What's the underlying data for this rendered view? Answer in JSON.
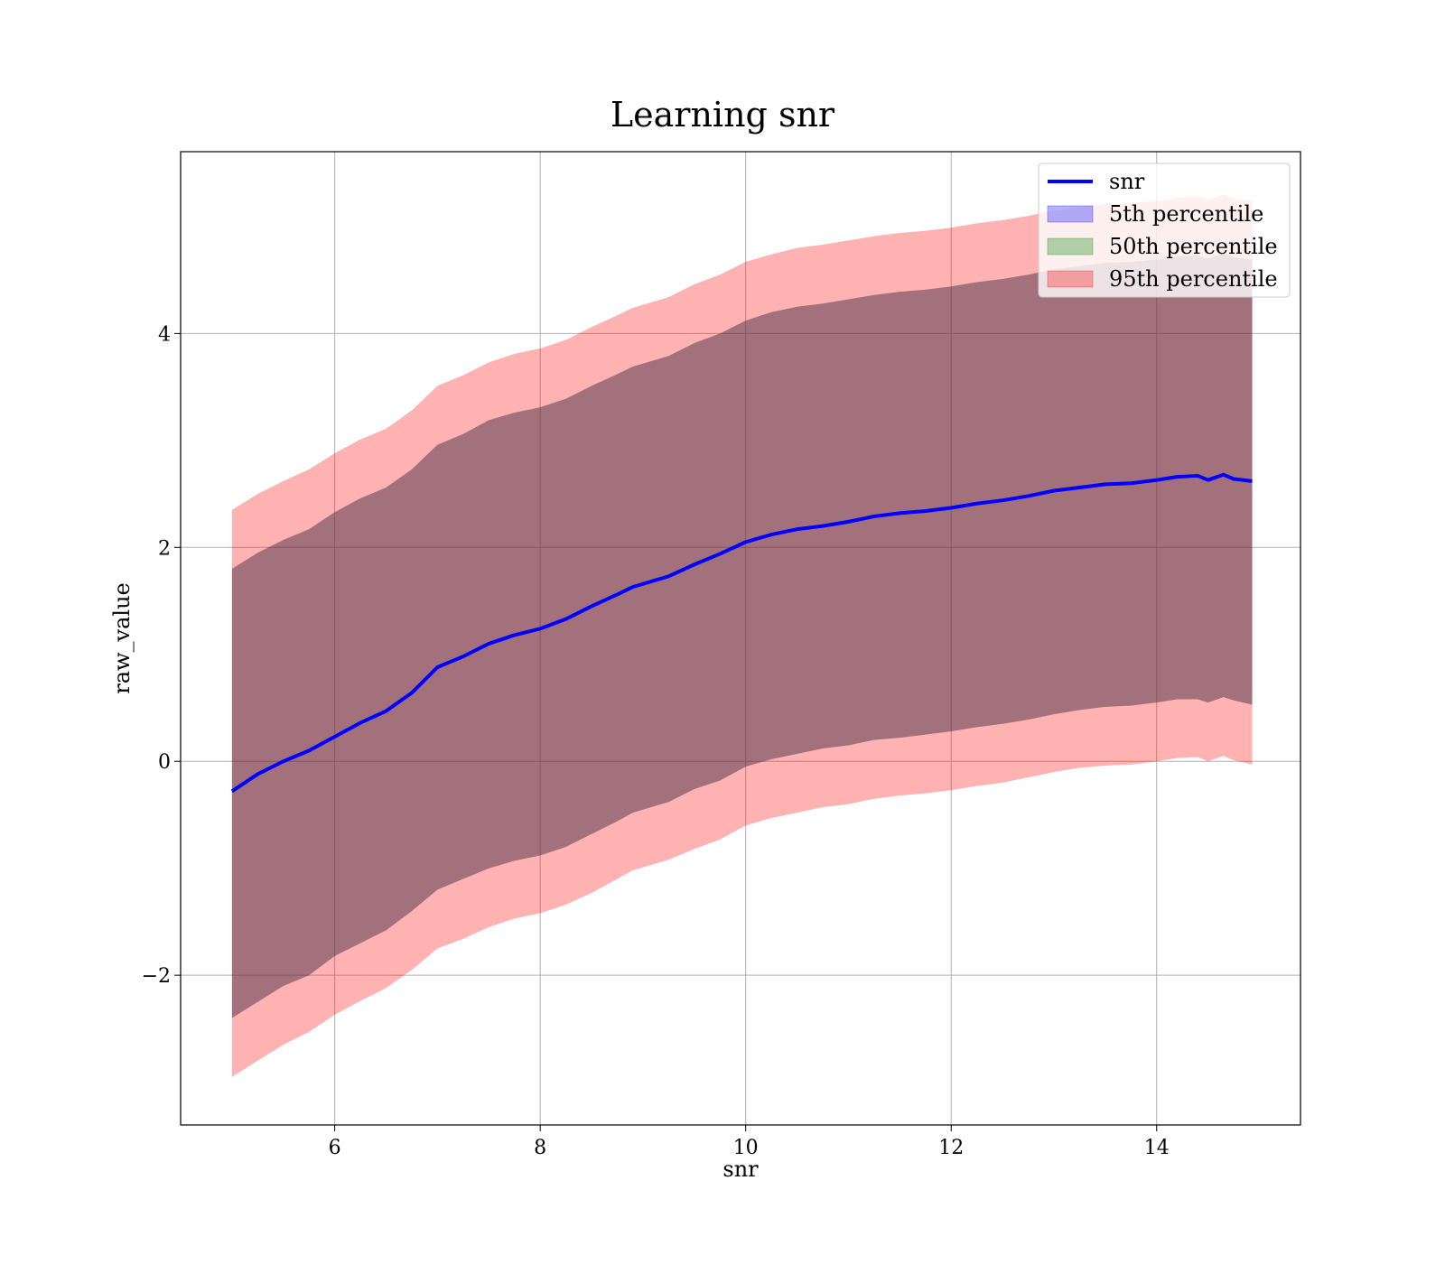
{
  "chart_data": {
    "type": "line",
    "title": "Learning snr",
    "xlabel": "snr",
    "ylabel": "raw_value",
    "xlim": [
      4.5,
      15.4
    ],
    "ylim": [
      -3.4,
      5.7
    ],
    "xticks": [
      6,
      8,
      10,
      12,
      14
    ],
    "xtick_labels": [
      "6",
      "8",
      "10",
      "12",
      "14"
    ],
    "yticks": [
      -2,
      0,
      2,
      4
    ],
    "ytick_labels": [
      "−2",
      "0",
      "2",
      "4"
    ],
    "grid": true,
    "legend_position": "top-right",
    "x": [
      5.0,
      5.25,
      5.5,
      5.75,
      6.0,
      6.25,
      6.5,
      6.75,
      7.0,
      7.25,
      7.5,
      7.75,
      8.0,
      8.25,
      8.5,
      8.75,
      8.9,
      9.25,
      9.5,
      9.75,
      10.0,
      10.25,
      10.5,
      10.75,
      11.0,
      11.25,
      11.5,
      11.75,
      12.0,
      12.25,
      12.5,
      12.75,
      13.0,
      13.25,
      13.5,
      13.75,
      14.0,
      14.2,
      14.4,
      14.5,
      14.65,
      14.75,
      14.93
    ],
    "series": [
      {
        "name": "snr",
        "kind": "line",
        "color": "#0000ff",
        "values": [
          -0.28,
          -0.12,
          0.0,
          0.1,
          0.23,
          0.36,
          0.47,
          0.64,
          0.88,
          0.98,
          1.1,
          1.18,
          1.24,
          1.33,
          1.45,
          1.56,
          1.63,
          1.73,
          1.84,
          1.94,
          2.05,
          2.12,
          2.17,
          2.2,
          2.24,
          2.29,
          2.32,
          2.34,
          2.37,
          2.41,
          2.44,
          2.48,
          2.53,
          2.56,
          2.59,
          2.6,
          2.63,
          2.66,
          2.67,
          2.63,
          2.68,
          2.64,
          2.62
        ]
      },
      {
        "name": "5th percentile",
        "kind": "band",
        "color": "#0000ff",
        "lower": [
          -2.4,
          -2.25,
          -2.1,
          -2.0,
          -1.82,
          -1.7,
          -1.58,
          -1.4,
          -1.2,
          -1.1,
          -1.0,
          -0.93,
          -0.88,
          -0.8,
          -0.68,
          -0.56,
          -0.48,
          -0.38,
          -0.26,
          -0.18,
          -0.05,
          0.02,
          0.07,
          0.12,
          0.15,
          0.2,
          0.22,
          0.25,
          0.28,
          0.32,
          0.35,
          0.39,
          0.44,
          0.48,
          0.51,
          0.52,
          0.55,
          0.58,
          0.58,
          0.55,
          0.6,
          0.57,
          0.53
        ],
        "upper": [
          1.8,
          1.95,
          2.07,
          2.17,
          2.33,
          2.46,
          2.56,
          2.73,
          2.96,
          3.06,
          3.19,
          3.26,
          3.31,
          3.39,
          3.51,
          3.62,
          3.69,
          3.79,
          3.91,
          4.0,
          4.12,
          4.2,
          4.25,
          4.28,
          4.32,
          4.36,
          4.39,
          4.41,
          4.44,
          4.48,
          4.51,
          4.55,
          4.6,
          4.63,
          4.66,
          4.67,
          4.69,
          4.72,
          4.73,
          4.7,
          4.75,
          4.71,
          4.69
        ]
      },
      {
        "name": "50th percentile",
        "kind": "band",
        "color": "#008000",
        "lower": [
          -2.4,
          -2.25,
          -2.1,
          -2.0,
          -1.82,
          -1.7,
          -1.58,
          -1.4,
          -1.2,
          -1.1,
          -1.0,
          -0.93,
          -0.88,
          -0.8,
          -0.68,
          -0.56,
          -0.48,
          -0.38,
          -0.26,
          -0.18,
          -0.05,
          0.02,
          0.07,
          0.12,
          0.15,
          0.2,
          0.22,
          0.25,
          0.28,
          0.32,
          0.35,
          0.39,
          0.44,
          0.48,
          0.51,
          0.52,
          0.55,
          0.58,
          0.58,
          0.55,
          0.6,
          0.57,
          0.53
        ],
        "upper": [
          1.8,
          1.95,
          2.07,
          2.17,
          2.33,
          2.46,
          2.56,
          2.73,
          2.96,
          3.06,
          3.19,
          3.26,
          3.31,
          3.39,
          3.51,
          3.62,
          3.69,
          3.79,
          3.91,
          4.0,
          4.12,
          4.2,
          4.25,
          4.28,
          4.32,
          4.36,
          4.39,
          4.41,
          4.44,
          4.48,
          4.51,
          4.55,
          4.6,
          4.63,
          4.66,
          4.67,
          4.69,
          4.72,
          4.73,
          4.7,
          4.75,
          4.71,
          4.69
        ]
      },
      {
        "name": "95th percentile",
        "kind": "band",
        "color": "#ff0000",
        "lower": [
          -2.95,
          -2.8,
          -2.65,
          -2.53,
          -2.37,
          -2.24,
          -2.12,
          -1.95,
          -1.75,
          -1.66,
          -1.55,
          -1.47,
          -1.42,
          -1.34,
          -1.23,
          -1.1,
          -1.02,
          -0.92,
          -0.82,
          -0.73,
          -0.6,
          -0.53,
          -0.48,
          -0.43,
          -0.4,
          -0.35,
          -0.32,
          -0.3,
          -0.27,
          -0.23,
          -0.2,
          -0.15,
          -0.1,
          -0.06,
          -0.04,
          -0.03,
          0.0,
          0.03,
          0.04,
          0.0,
          0.05,
          0.01,
          -0.03
        ],
        "upper": [
          2.35,
          2.5,
          2.62,
          2.73,
          2.88,
          3.01,
          3.11,
          3.28,
          3.51,
          3.61,
          3.73,
          3.81,
          3.86,
          3.94,
          4.06,
          4.17,
          4.24,
          4.34,
          4.46,
          4.55,
          4.67,
          4.74,
          4.8,
          4.83,
          4.87,
          4.91,
          4.94,
          4.96,
          4.99,
          5.03,
          5.06,
          5.1,
          5.15,
          5.18,
          5.21,
          5.22,
          5.24,
          5.27,
          5.28,
          5.25,
          5.3,
          5.26,
          5.24
        ]
      }
    ]
  }
}
